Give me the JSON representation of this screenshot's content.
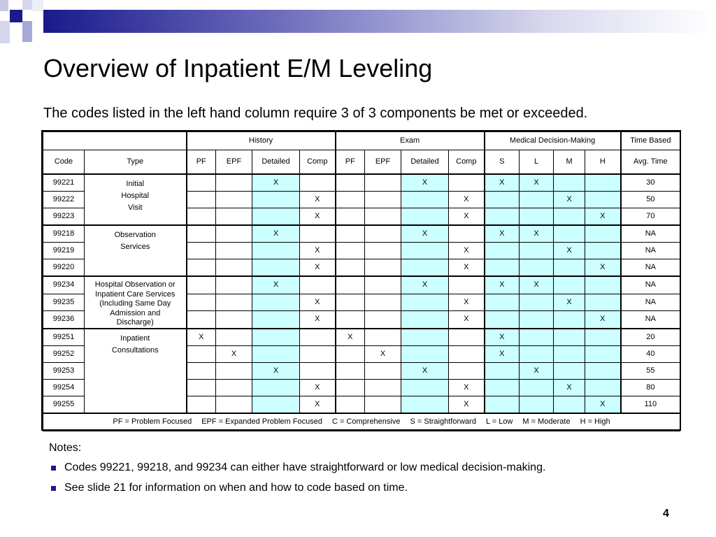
{
  "slide": {
    "title": "Overview of Inpatient E/M Leveling",
    "subtitle": "The codes listed in the left hand column require 3 of 3 components be met or exceeded.",
    "page_number": "4",
    "accent_color": "#1a1a8c",
    "highlight_color": "#ccffff"
  },
  "table": {
    "groups": {
      "history": "History",
      "exam": "Exam",
      "mdm": "Medical Decision-Making",
      "time": "Time Based"
    },
    "columns": {
      "code": "Code",
      "type": "Type",
      "pf": "PF",
      "epf": "EPF",
      "detailed": "Detailed",
      "comp": "Comp",
      "s": "S",
      "l": "L",
      "m": "M",
      "h": "H",
      "avg_time": "Avg. Time"
    },
    "types": {
      "initial": [
        "Initial",
        "Hospital",
        "Visit"
      ],
      "observation": [
        "Observation",
        "Services"
      ],
      "obs_care": [
        "Hospital Observation or",
        "Inpatient Care Services",
        "(Including Same Day",
        "Admission and",
        "Discharge)"
      ],
      "consult": [
        "Inpatient",
        "Consultations"
      ]
    },
    "rows": [
      {
        "code": "99221",
        "h": [
          "",
          "",
          "X",
          ""
        ],
        "e": [
          "",
          "",
          "X",
          ""
        ],
        "m": [
          "X",
          "X",
          "",
          ""
        ],
        "time": "30"
      },
      {
        "code": "99222",
        "h": [
          "",
          "",
          "",
          "X"
        ],
        "e": [
          "",
          "",
          "",
          "X"
        ],
        "m": [
          "",
          "",
          "X",
          ""
        ],
        "time": "50"
      },
      {
        "code": "99223",
        "h": [
          "",
          "",
          "",
          "X"
        ],
        "e": [
          "",
          "",
          "",
          "X"
        ],
        "m": [
          "",
          "",
          "",
          "X"
        ],
        "time": "70"
      },
      {
        "code": "99218",
        "h": [
          "",
          "",
          "X",
          ""
        ],
        "e": [
          "",
          "",
          "X",
          ""
        ],
        "m": [
          "X",
          "X",
          "",
          ""
        ],
        "time": "NA"
      },
      {
        "code": "99219",
        "h": [
          "",
          "",
          "",
          "X"
        ],
        "e": [
          "",
          "",
          "",
          "X"
        ],
        "m": [
          "",
          "",
          "X",
          ""
        ],
        "time": "NA"
      },
      {
        "code": "99220",
        "h": [
          "",
          "",
          "",
          "X"
        ],
        "e": [
          "",
          "",
          "",
          "X"
        ],
        "m": [
          "",
          "",
          "",
          "X"
        ],
        "time": "NA"
      },
      {
        "code": "99234",
        "h": [
          "",
          "",
          "X",
          ""
        ],
        "e": [
          "",
          "",
          "X",
          ""
        ],
        "m": [
          "X",
          "X",
          "",
          ""
        ],
        "time": "NA"
      },
      {
        "code": "99235",
        "h": [
          "",
          "",
          "",
          "X"
        ],
        "e": [
          "",
          "",
          "",
          "X"
        ],
        "m": [
          "",
          "",
          "X",
          ""
        ],
        "time": "NA"
      },
      {
        "code": "99236",
        "h": [
          "",
          "",
          "",
          "X"
        ],
        "e": [
          "",
          "",
          "",
          "X"
        ],
        "m": [
          "",
          "",
          "",
          "X"
        ],
        "time": "NA"
      },
      {
        "code": "99251",
        "h": [
          "X",
          "",
          "",
          ""
        ],
        "e": [
          "X",
          "",
          "",
          ""
        ],
        "m": [
          "X",
          "",
          "",
          ""
        ],
        "time": "20"
      },
      {
        "code": "99252",
        "h": [
          "",
          "X",
          "",
          ""
        ],
        "e": [
          "",
          "X",
          "",
          ""
        ],
        "m": [
          "X",
          "",
          "",
          ""
        ],
        "time": "40"
      },
      {
        "code": "99253",
        "h": [
          "",
          "",
          "X",
          ""
        ],
        "e": [
          "",
          "",
          "X",
          ""
        ],
        "m": [
          "",
          "X",
          "",
          ""
        ],
        "time": "55"
      },
      {
        "code": "99254",
        "h": [
          "",
          "",
          "",
          "X"
        ],
        "e": [
          "",
          "",
          "",
          "X"
        ],
        "m": [
          "",
          "",
          "X",
          ""
        ],
        "time": "80"
      },
      {
        "code": "99255",
        "h": [
          "",
          "",
          "",
          "X"
        ],
        "e": [
          "",
          "",
          "",
          "X"
        ],
        "m": [
          "",
          "",
          "",
          "X"
        ],
        "time": "110"
      }
    ],
    "legend": [
      "PF = Problem Focused",
      "EPF = Expanded Problem Focused",
      "C = Comprehensive",
      "S = Straightforward",
      "L = Low",
      "M = Moderate",
      "H = High"
    ]
  },
  "notes": {
    "title": "Notes:",
    "items": [
      "Codes 99221, 99218, and 99234 can either have straightforward or low medical decision-making.",
      "See slide 21 for information on when and how to code based on time."
    ]
  }
}
